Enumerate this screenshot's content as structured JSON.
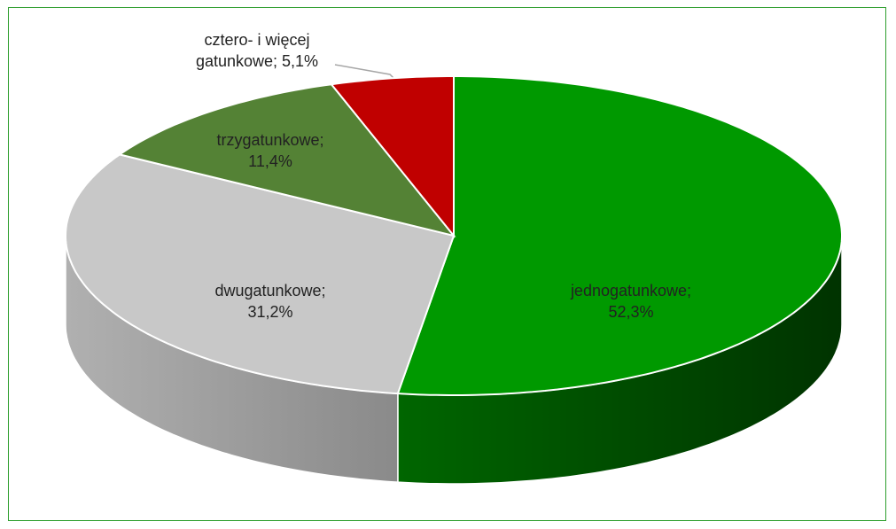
{
  "chart_data": {
    "type": "pie3d",
    "categories": [
      "jednogatunkowe;",
      "dwugatunkowe;",
      "trzygatunkowe;",
      "cztero- i więcej gatunkowe;"
    ],
    "values": [
      52.3,
      31.2,
      11.4,
      5.1
    ],
    "value_labels": [
      "52,3%",
      "31,2%",
      "11,4%",
      "5,1%"
    ],
    "colors": [
      "#009900",
      "#c8c8c8",
      "#548235",
      "#c00000"
    ]
  }
}
